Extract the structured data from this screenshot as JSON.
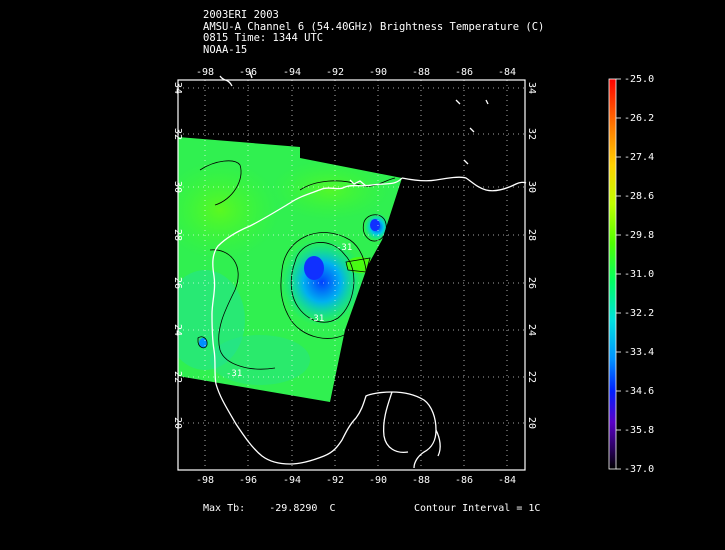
{
  "header": {
    "line1": "2003ERI 2003",
    "line2": "AMSU-A Channel 6 (54.40GHz) Brightness Temperature (C)",
    "line3": "0815 Time: 1344 UTC",
    "line4": "NOAA-15"
  },
  "footer": {
    "max_label": "Max Tb:",
    "max_value": "-29.8290",
    "max_unit": "C",
    "contour_interval": "Contour Interval = 1C"
  },
  "map": {
    "lon_ticks": [
      "-98",
      "-96",
      "-94",
      "-92",
      "-90",
      "-88",
      "-86",
      "-84"
    ],
    "lat_ticks": [
      "34",
      "32",
      "30",
      "28",
      "26",
      "24",
      "22",
      "20"
    ],
    "contour_labels": [
      "-31",
      "-31",
      "-31"
    ]
  },
  "colorbar": {
    "labels": [
      "-25.0",
      "-26.2",
      "-27.4",
      "-28.6",
      "-29.8",
      "-31.0",
      "-32.2",
      "-33.4",
      "-34.6",
      "-35.8",
      "-37.0"
    ],
    "colors": [
      "#ff0000",
      "#ff8c00",
      "#ffd700",
      "#c8ff00",
      "#50ff00",
      "#00ff64",
      "#00e6e6",
      "#0096ff",
      "#0028ff",
      "#5000c8",
      "#32007a",
      "#000000"
    ]
  }
}
